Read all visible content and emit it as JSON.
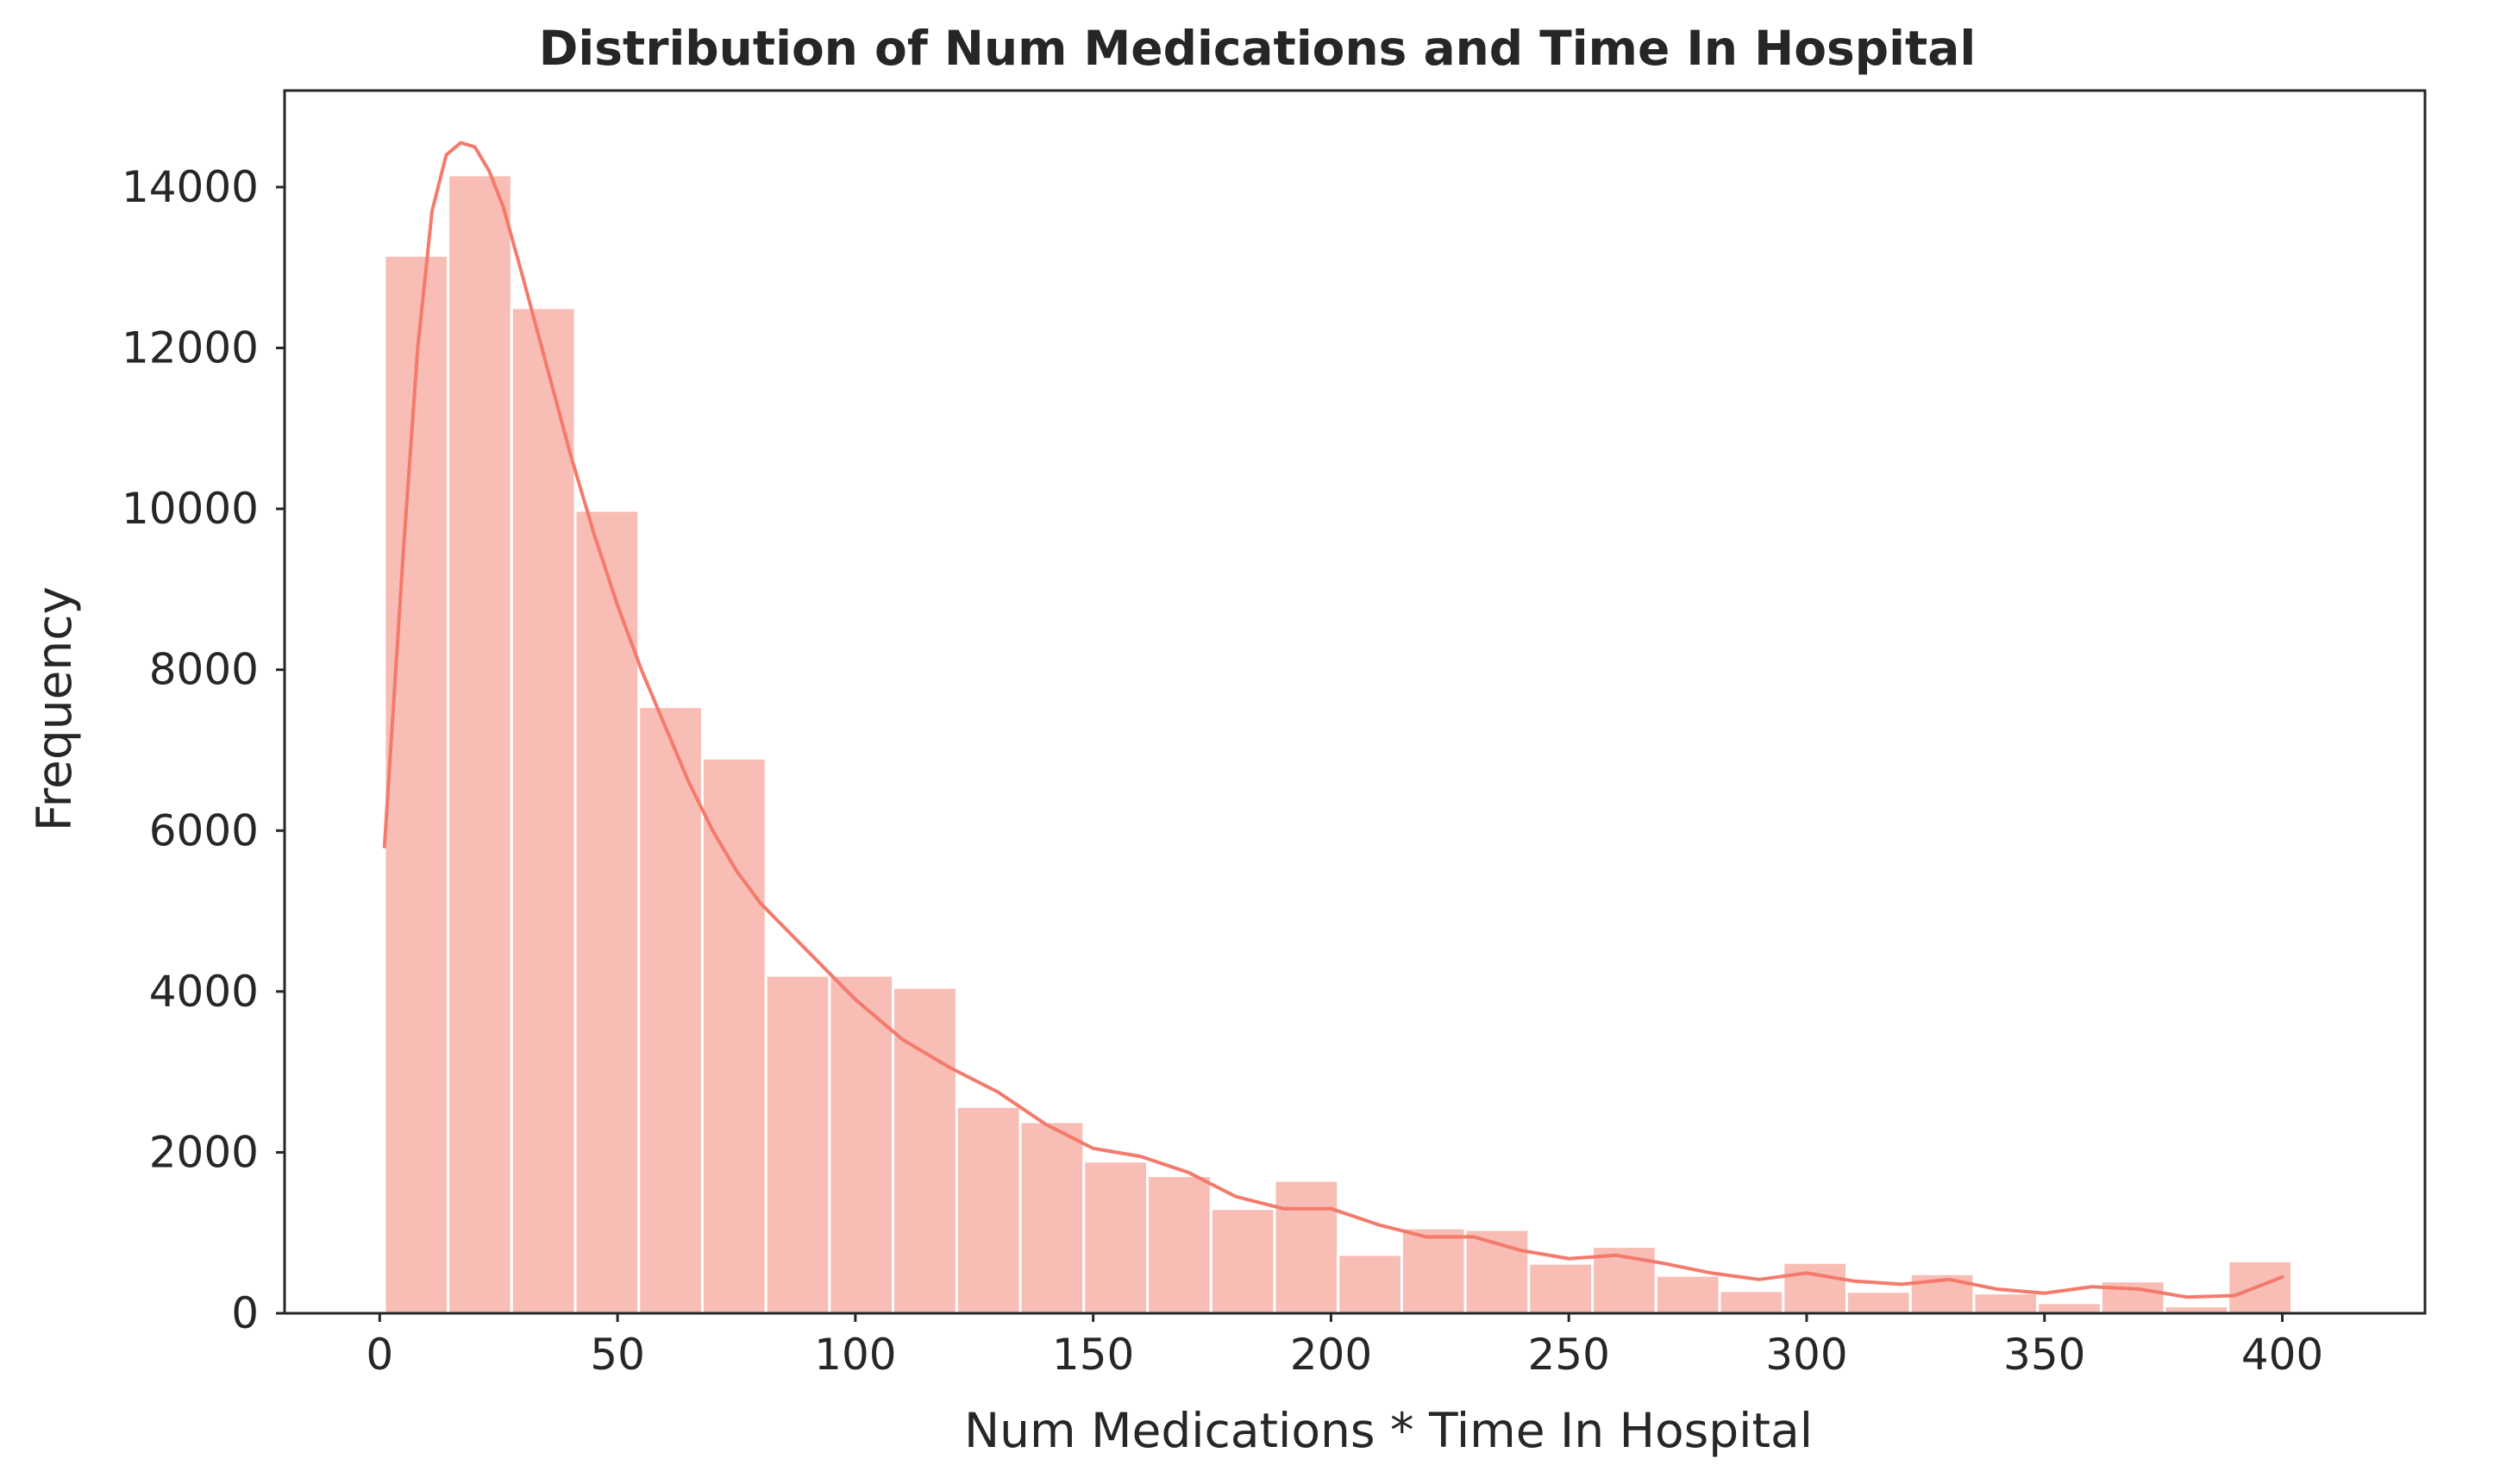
{
  "chart_data": {
    "type": "bar",
    "title": "Distribution of Num Medications and Time In Hospital",
    "xlabel": "Num Medications * Time In Hospital",
    "ylabel": "Frequency",
    "xlim": [
      -20,
      430
    ],
    "ylim": [
      0,
      15200
    ],
    "xticks": [
      0,
      50,
      100,
      150,
      200,
      250,
      300,
      350,
      400
    ],
    "yticks": [
      0,
      2000,
      4000,
      6000,
      8000,
      10000,
      12000,
      14000
    ],
    "grid": false,
    "bar_color": "#f8bdb4",
    "line_color": "#f47a6c",
    "bin_edges": [
      1,
      14.37,
      27.73,
      41.1,
      54.47,
      67.83,
      81.2,
      94.57,
      107.93,
      121.3,
      134.67,
      148.03,
      161.4,
      174.77,
      188.13,
      201.5,
      214.87,
      228.23,
      241.6,
      254.97,
      268.33,
      281.7,
      295.07,
      308.43,
      321.8,
      335.17,
      348.53,
      361.9,
      375.27,
      388.63,
      402
    ],
    "values": [
      13150,
      14150,
      12500,
      9980,
      7540,
      6900,
      4200,
      4200,
      4050,
      2570,
      2380,
      1890,
      1710,
      1300,
      1650,
      730,
      1060,
      1040,
      620,
      830,
      470,
      280,
      630,
      270,
      490,
      250,
      130,
      400,
      90,
      650
    ],
    "kde": {
      "x": [
        1,
        5,
        8,
        11,
        14,
        17,
        20,
        23,
        26,
        30,
        35,
        40,
        45,
        50,
        55,
        60,
        65,
        70,
        75,
        80,
        85,
        90,
        95,
        100,
        110,
        120,
        130,
        140,
        150,
        160,
        170,
        180,
        190,
        200,
        210,
        220,
        230,
        240,
        250,
        260,
        270,
        280,
        290,
        300,
        310,
        320,
        330,
        340,
        350,
        360,
        370,
        380,
        390,
        400
      ],
      "y": [
        5800,
        9500,
        12000,
        13700,
        14400,
        14550,
        14500,
        14200,
        13750,
        12900,
        11800,
        10700,
        9700,
        8800,
        8000,
        7300,
        6600,
        6000,
        5500,
        5100,
        4800,
        4500,
        4200,
        3900,
        3400,
        3050,
        2750,
        2350,
        2050,
        1950,
        1750,
        1450,
        1300,
        1300,
        1100,
        950,
        950,
        780,
        680,
        720,
        620,
        500,
        420,
        500,
        400,
        360,
        420,
        300,
        250,
        330,
        300,
        200,
        220,
        450
      ]
    }
  }
}
